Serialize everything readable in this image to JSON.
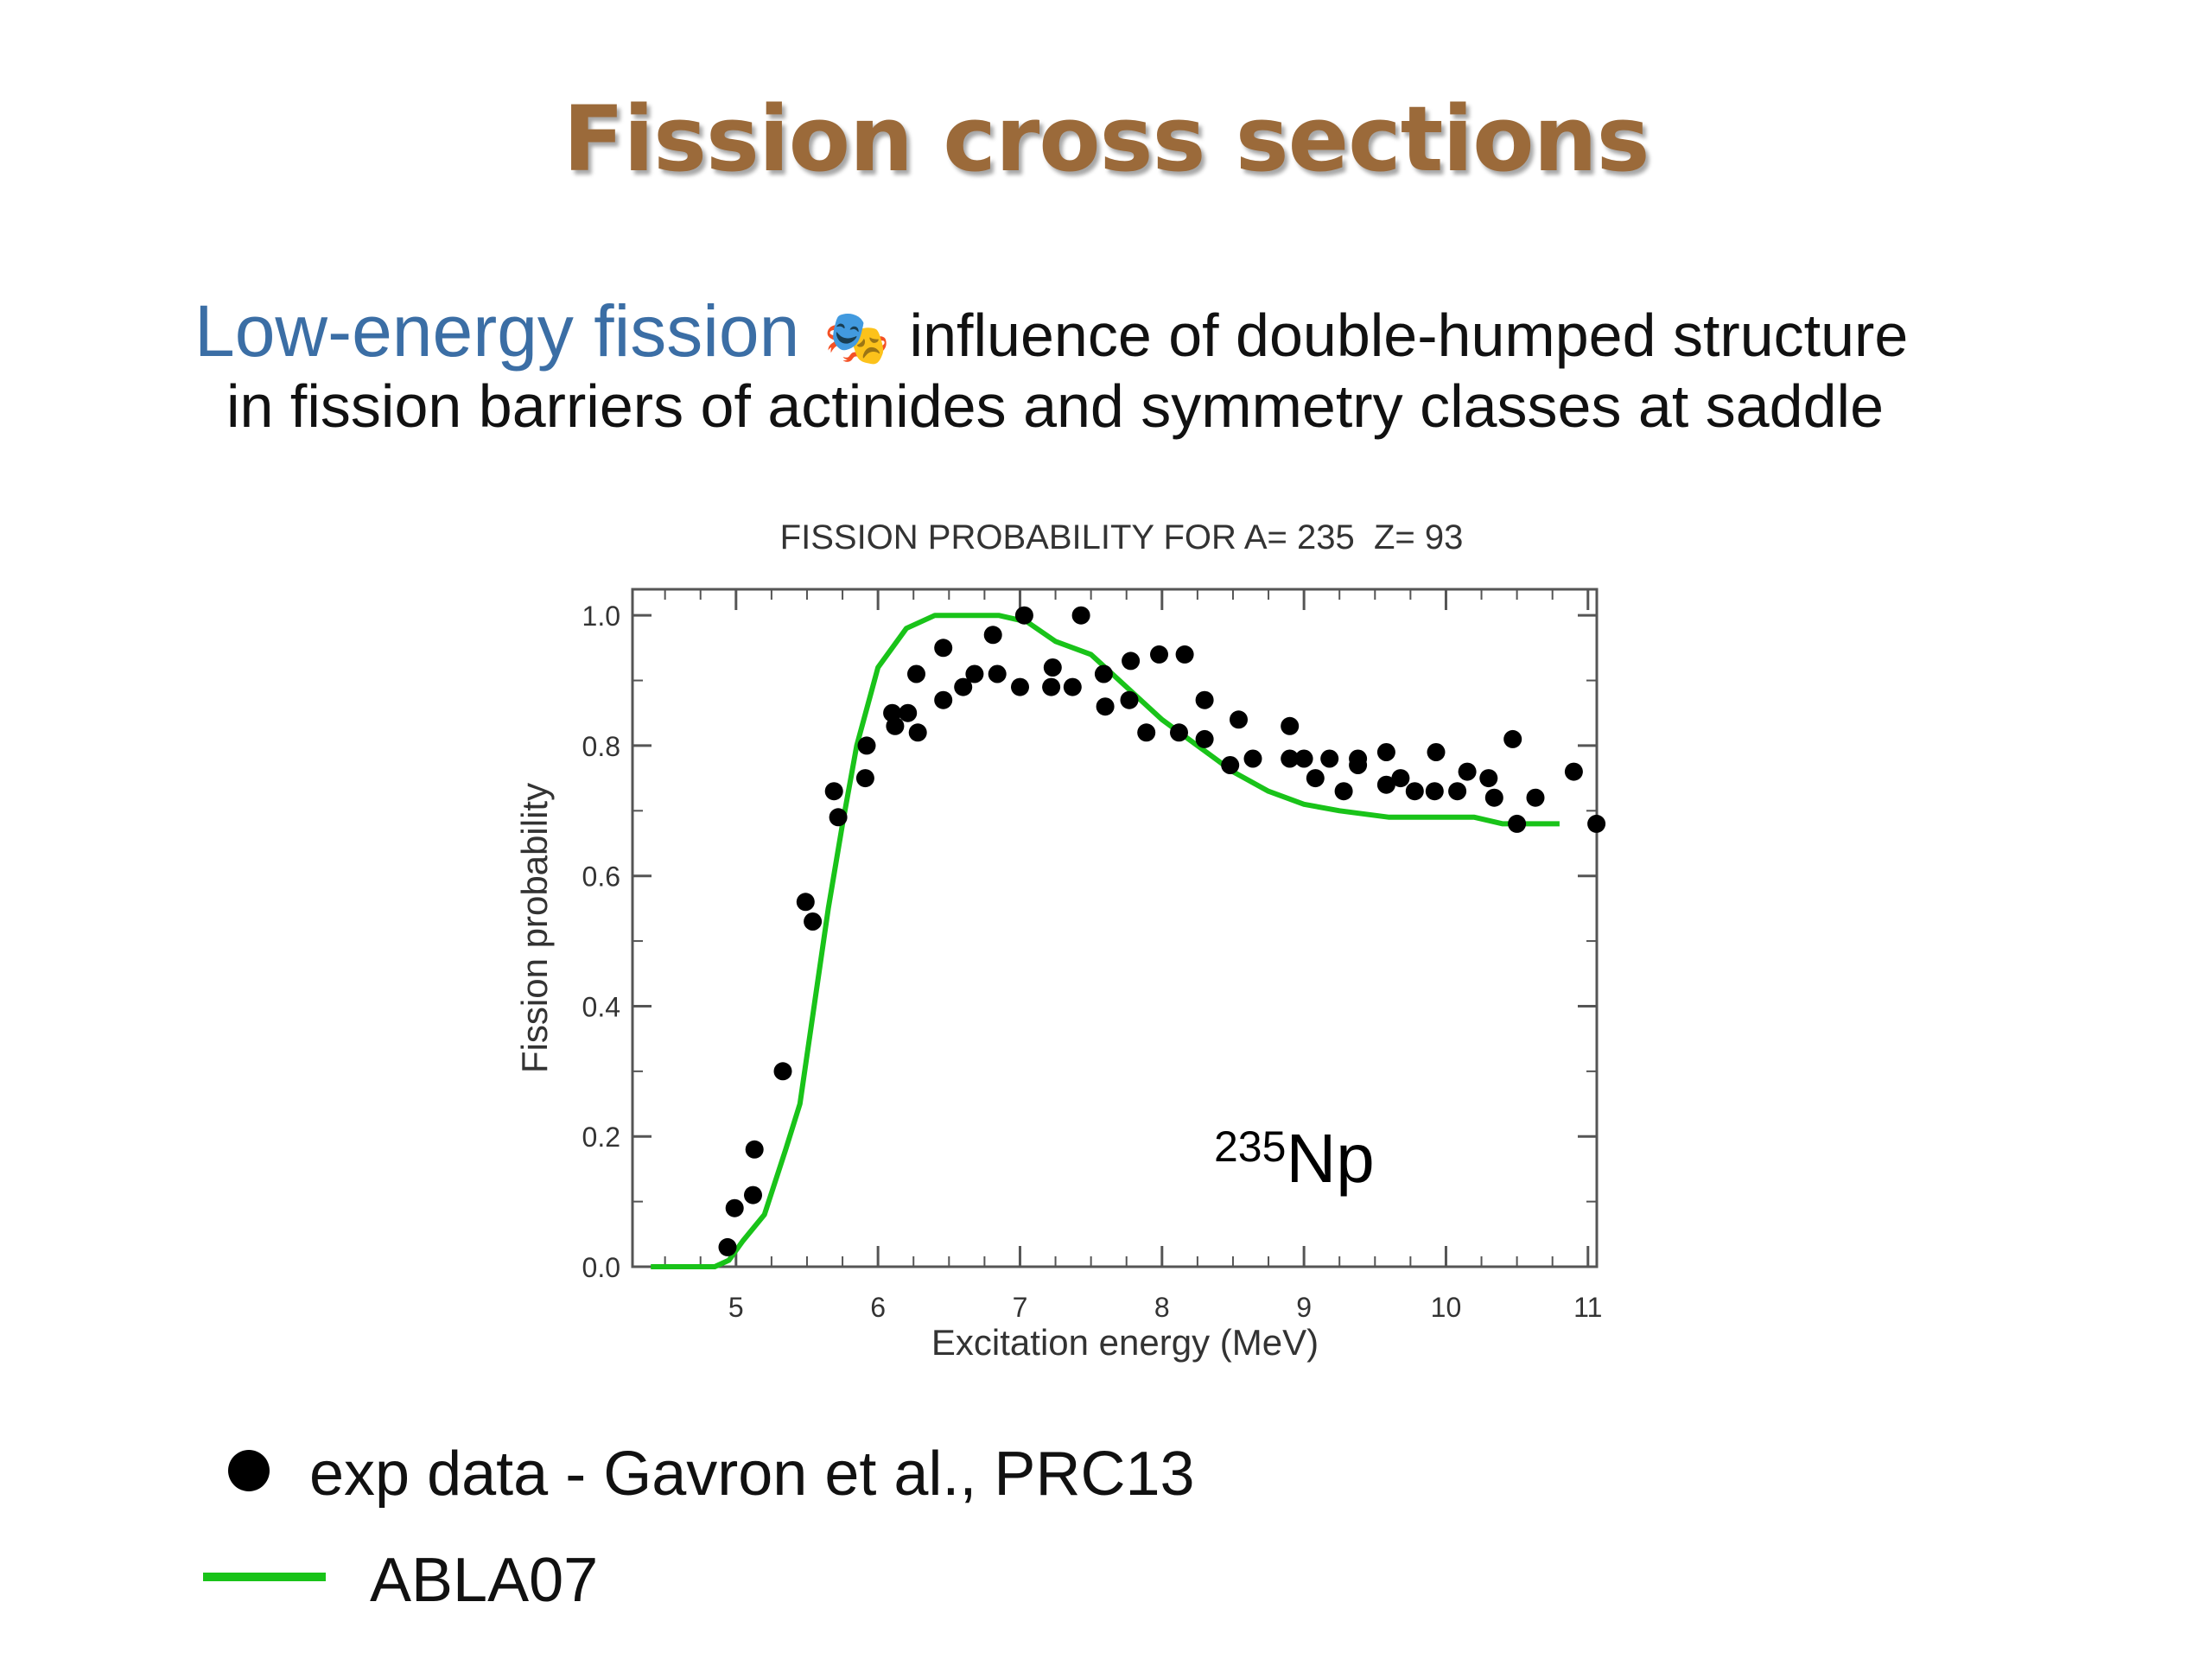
{
  "slide": {
    "title": "Fission cross sections",
    "lead": "Low-energy fission",
    "lead_icon": "theater-masks-icon",
    "line1_rest": "influence of double-humped structure",
    "line2": "in fission barriers of actinides and symmetry classes at saddle"
  },
  "legend": {
    "exp_label": "exp data - Gavron et al., PRC13",
    "model_label": "ABLA07",
    "exp_color": "#000000",
    "model_color": "#19c319"
  },
  "chart_data": {
    "type": "scatter",
    "title": "FISSION PROBABILITY FOR A= 235  Z= 93",
    "xlabel": "Excitation energy (MeV)",
    "ylabel": "Fission probability",
    "xlim": [
      4.35,
      11.05
    ],
    "ylim": [
      0.0,
      1.04
    ],
    "xticks": [
      5,
      6,
      7,
      8,
      9,
      10,
      11
    ],
    "yticks": [
      0.0,
      0.2,
      0.4,
      0.6,
      0.8,
      1.0
    ],
    "ytick_labels": [
      "0.0",
      "0.2",
      "0.4",
      "0.6",
      "0.8",
      "1.0"
    ],
    "annotation": {
      "mass": "235",
      "element": "Np"
    },
    "grid": false,
    "series": [
      {
        "name": "exp data - Gavron et al., PRC13",
        "kind": "scatter",
        "color": "#000000",
        "points": [
          [
            4.94,
            0.03
          ],
          [
            4.99,
            0.09
          ],
          [
            5.12,
            0.11
          ],
          [
            5.13,
            0.18
          ],
          [
            5.33,
            0.3
          ],
          [
            5.49,
            0.56
          ],
          [
            5.54,
            0.53
          ],
          [
            5.69,
            0.73
          ],
          [
            5.72,
            0.69
          ],
          [
            5.91,
            0.75
          ],
          [
            5.92,
            0.8
          ],
          [
            6.1,
            0.85
          ],
          [
            6.12,
            0.83
          ],
          [
            6.21,
            0.85
          ],
          [
            6.27,
            0.91
          ],
          [
            6.28,
            0.82
          ],
          [
            6.46,
            0.87
          ],
          [
            6.46,
            0.95
          ],
          [
            6.6,
            0.89
          ],
          [
            6.68,
            0.91
          ],
          [
            6.81,
            0.97
          ],
          [
            6.84,
            0.91
          ],
          [
            7.0,
            0.89
          ],
          [
            7.03,
            1.0
          ],
          [
            7.22,
            0.89
          ],
          [
            7.23,
            0.92
          ],
          [
            7.37,
            0.89
          ],
          [
            7.43,
            1.0
          ],
          [
            7.59,
            0.91
          ],
          [
            7.6,
            0.86
          ],
          [
            7.77,
            0.87
          ],
          [
            7.78,
            0.93
          ],
          [
            7.89,
            0.82
          ],
          [
            7.98,
            0.94
          ],
          [
            8.12,
            0.82
          ],
          [
            8.16,
            0.94
          ],
          [
            8.3,
            0.87
          ],
          [
            8.3,
            0.81
          ],
          [
            8.48,
            0.77
          ],
          [
            8.54,
            0.84
          ],
          [
            8.64,
            0.78
          ],
          [
            8.9,
            0.78
          ],
          [
            8.9,
            0.83
          ],
          [
            9.0,
            0.78
          ],
          [
            9.08,
            0.75
          ],
          [
            9.18,
            0.78
          ],
          [
            9.28,
            0.73
          ],
          [
            9.38,
            0.77
          ],
          [
            9.38,
            0.78
          ],
          [
            9.58,
            0.79
          ],
          [
            9.58,
            0.74
          ],
          [
            9.68,
            0.75
          ],
          [
            9.78,
            0.73
          ],
          [
            9.92,
            0.73
          ],
          [
            9.93,
            0.79
          ],
          [
            10.08,
            0.73
          ],
          [
            10.15,
            0.76
          ],
          [
            10.3,
            0.75
          ],
          [
            10.34,
            0.72
          ],
          [
            10.47,
            0.81
          ],
          [
            10.5,
            0.68
          ],
          [
            10.63,
            0.72
          ],
          [
            10.9,
            0.76
          ],
          [
            11.06,
            0.68
          ]
        ]
      },
      {
        "name": "ABLA07",
        "kind": "line",
        "color": "#19c319",
        "points": [
          [
            4.4,
            0.0
          ],
          [
            4.7,
            0.0
          ],
          [
            4.85,
            0.0
          ],
          [
            4.95,
            0.01
          ],
          [
            5.05,
            0.04
          ],
          [
            5.2,
            0.08
          ],
          [
            5.35,
            0.18
          ],
          [
            5.45,
            0.25
          ],
          [
            5.55,
            0.4
          ],
          [
            5.65,
            0.55
          ],
          [
            5.75,
            0.68
          ],
          [
            5.85,
            0.8
          ],
          [
            6.0,
            0.92
          ],
          [
            6.2,
            0.98
          ],
          [
            6.4,
            1.0
          ],
          [
            6.6,
            1.0
          ],
          [
            6.85,
            1.0
          ],
          [
            7.05,
            0.99
          ],
          [
            7.25,
            0.96
          ],
          [
            7.5,
            0.94
          ],
          [
            7.75,
            0.89
          ],
          [
            8.0,
            0.84
          ],
          [
            8.25,
            0.8
          ],
          [
            8.5,
            0.76
          ],
          [
            8.75,
            0.73
          ],
          [
            9.0,
            0.71
          ],
          [
            9.25,
            0.7
          ],
          [
            9.6,
            0.69
          ],
          [
            10.0,
            0.69
          ],
          [
            10.2,
            0.69
          ],
          [
            10.4,
            0.68
          ],
          [
            10.6,
            0.68
          ],
          [
            10.8,
            0.68
          ]
        ]
      }
    ]
  }
}
